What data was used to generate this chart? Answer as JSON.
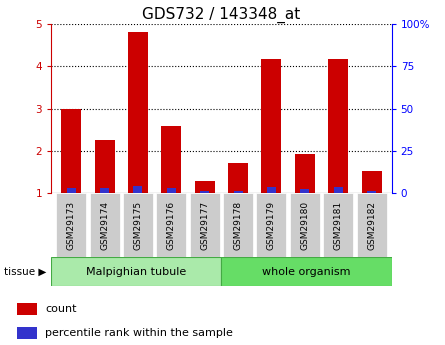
{
  "title": "GDS732 / 143348_at",
  "categories": [
    "GSM29173",
    "GSM29174",
    "GSM29175",
    "GSM29176",
    "GSM29177",
    "GSM29178",
    "GSM29179",
    "GSM29180",
    "GSM29181",
    "GSM29182"
  ],
  "red_values": [
    3.0,
    2.25,
    4.82,
    2.6,
    1.28,
    1.72,
    4.17,
    1.92,
    4.18,
    1.52
  ],
  "blue_values": [
    0.13,
    0.12,
    0.18,
    0.13,
    0.05,
    0.06,
    0.14,
    0.1,
    0.14,
    0.06
  ],
  "red_color": "#cc0000",
  "blue_color": "#3333cc",
  "ylim_left": [
    1,
    5
  ],
  "ylim_right": [
    0,
    100
  ],
  "yticks_left": [
    1,
    2,
    3,
    4,
    5
  ],
  "yticks_right": [
    0,
    25,
    50,
    75,
    100
  ],
  "ytick_labels_right": [
    "0",
    "25",
    "50",
    "75",
    "100%"
  ],
  "group1_label": "Malpighian tubule",
  "group2_label": "whole organism",
  "tissue_label": "tissue",
  "legend_count": "count",
  "legend_pct": "percentile rank within the sample",
  "bar_width": 0.6,
  "group1_bg": "#aaeaaa",
  "group2_bg": "#66dd66",
  "xticklabel_bg": "#cccccc",
  "plot_bg": "#ffffff",
  "outer_bg": "#ffffff",
  "title_fontsize": 11,
  "tick_fontsize": 7.5,
  "label_fontsize": 8,
  "baseline": 1.0,
  "n_groups": 10,
  "group1_count": 5,
  "group2_count": 5
}
